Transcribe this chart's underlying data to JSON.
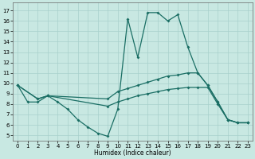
{
  "xlabel": "Humidex (Indice chaleur)",
  "background_color": "#c8e8e2",
  "grid_color": "#a8d0cc",
  "line_color": "#1a6e64",
  "xlim": [
    -0.5,
    23.5
  ],
  "ylim": [
    4.5,
    17.8
  ],
  "yticks": [
    5,
    6,
    7,
    8,
    9,
    10,
    11,
    12,
    13,
    14,
    15,
    16,
    17
  ],
  "xticks": [
    0,
    1,
    2,
    3,
    4,
    5,
    6,
    7,
    8,
    9,
    10,
    11,
    12,
    13,
    14,
    15,
    16,
    17,
    18,
    19,
    20,
    21,
    22,
    23
  ],
  "line1_x": [
    0,
    1,
    2,
    3,
    4,
    5,
    6,
    7,
    8,
    9,
    10,
    11,
    12,
    13,
    14,
    15,
    16,
    17,
    18,
    19,
    20,
    21,
    22,
    23
  ],
  "line1_y": [
    9.8,
    8.2,
    8.2,
    8.8,
    8.2,
    7.5,
    6.5,
    5.8,
    5.2,
    4.9,
    7.5,
    16.2,
    12.5,
    16.8,
    16.8,
    16.0,
    16.6,
    13.5,
    11.0,
    9.8,
    8.2,
    6.5,
    6.2,
    6.2
  ],
  "line2_x": [
    0,
    2,
    3,
    9,
    10,
    11,
    12,
    13,
    14,
    15,
    16,
    17,
    18,
    19,
    20,
    21,
    22,
    23
  ],
  "line2_y": [
    9.8,
    8.5,
    8.8,
    8.5,
    9.2,
    9.5,
    9.8,
    10.1,
    10.4,
    10.7,
    10.8,
    11.0,
    11.0,
    9.8,
    8.2,
    6.5,
    6.2,
    6.2
  ],
  "line3_x": [
    0,
    2,
    3,
    9,
    10,
    11,
    12,
    13,
    14,
    15,
    16,
    17,
    18,
    19,
    20,
    21,
    22,
    23
  ],
  "line3_y": [
    9.8,
    8.5,
    8.8,
    7.8,
    8.2,
    8.5,
    8.8,
    9.0,
    9.2,
    9.4,
    9.5,
    9.6,
    9.6,
    9.6,
    8.0,
    6.5,
    6.2,
    6.2
  ]
}
